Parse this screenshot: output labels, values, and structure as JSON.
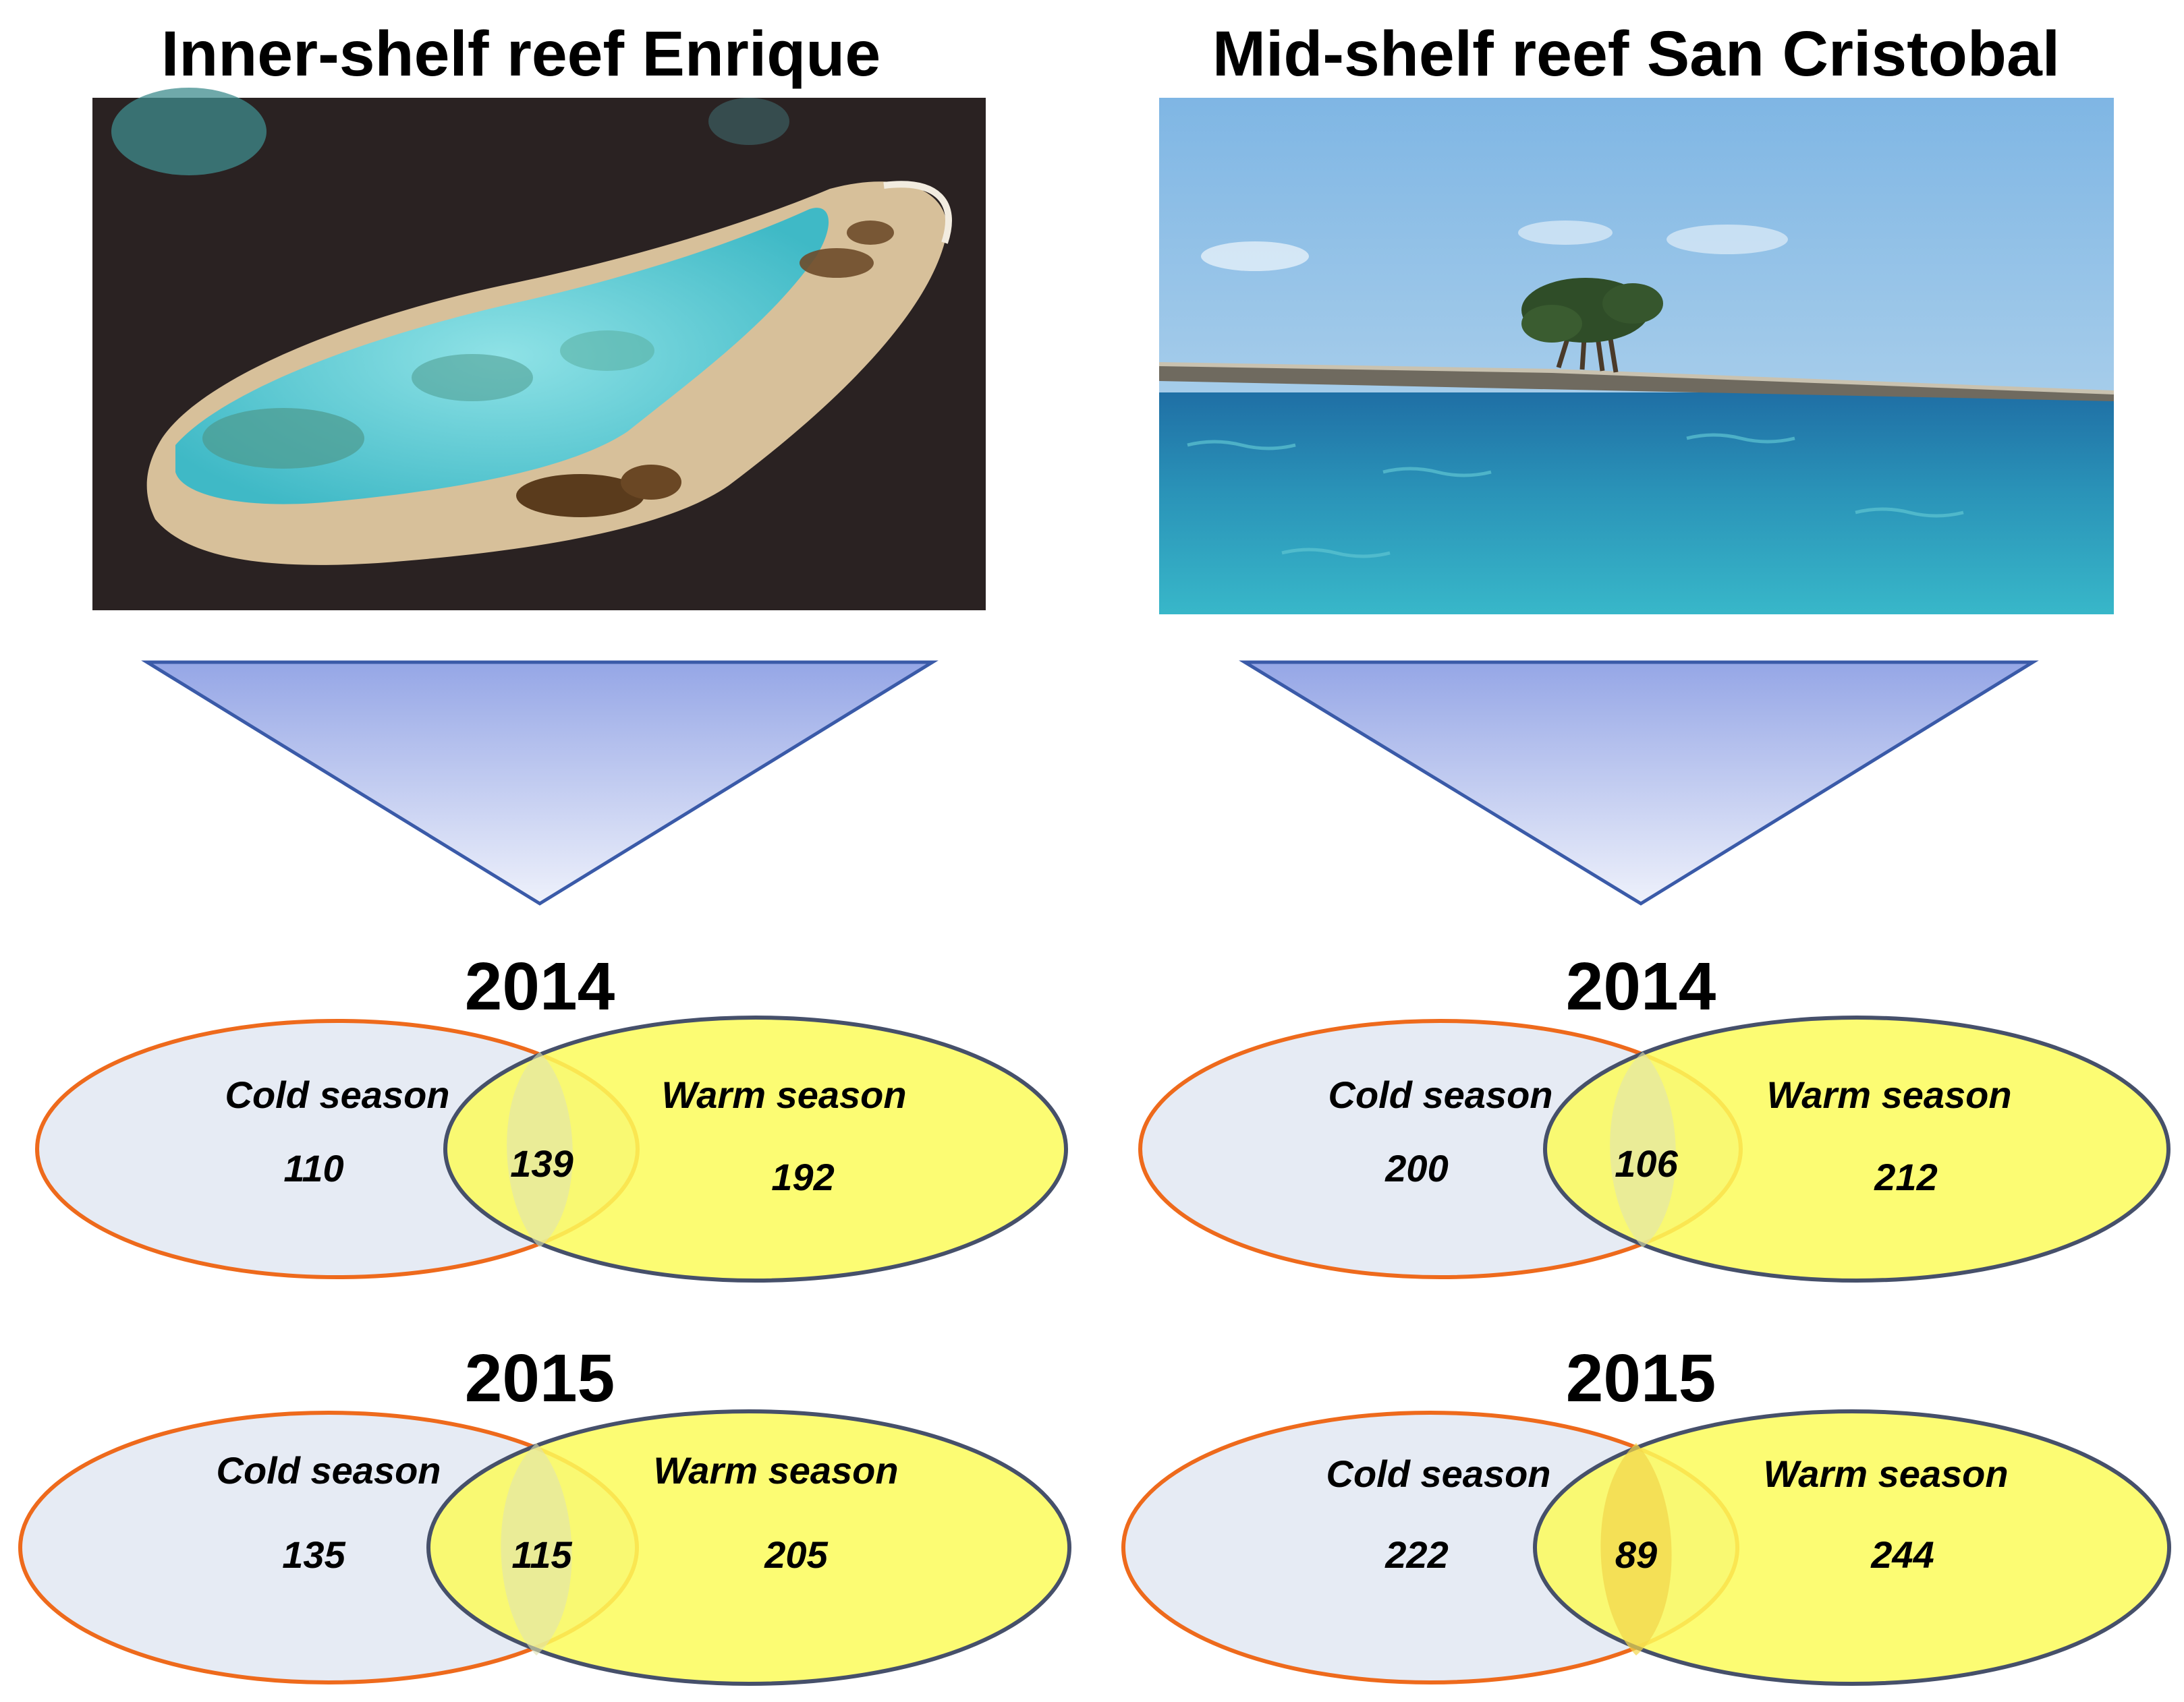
{
  "panels": [
    {
      "title": "Inner-shelf reef Enrique",
      "photo": "satellite image of reef",
      "years": [
        {
          "year": "2014",
          "cold_label": "Cold season",
          "warm_label": "Warm season",
          "cold_only": "110",
          "shared": "139",
          "warm_only": "192"
        },
        {
          "year": "2015",
          "cold_label": "Cold season",
          "warm_label": "Warm season",
          "cold_only": "135",
          "shared": "115",
          "warm_only": "205"
        }
      ]
    },
    {
      "title": "Mid-shelf reef San Cristobal",
      "photo": "photo of mangrove island at sea",
      "years": [
        {
          "year": "2014",
          "cold_label": "Cold season",
          "warm_label": "Warm season",
          "cold_only": "200",
          "shared": "106",
          "warm_only": "212"
        },
        {
          "year": "2015",
          "cold_label": "Cold season",
          "warm_label": "Warm season",
          "cold_only": "222",
          "shared": "89",
          "warm_only": "244"
        }
      ]
    }
  ],
  "colors": {
    "cold_fill": "#e6ebf4",
    "cold_stroke": "#ee6a1c",
    "warm_fill": "#fbfb5a",
    "warm_stroke": "#46506a",
    "funnel_top": "#95a6e6",
    "funnel_bottom": "#eef1fb",
    "funnel_stroke": "#3a5aa8"
  }
}
